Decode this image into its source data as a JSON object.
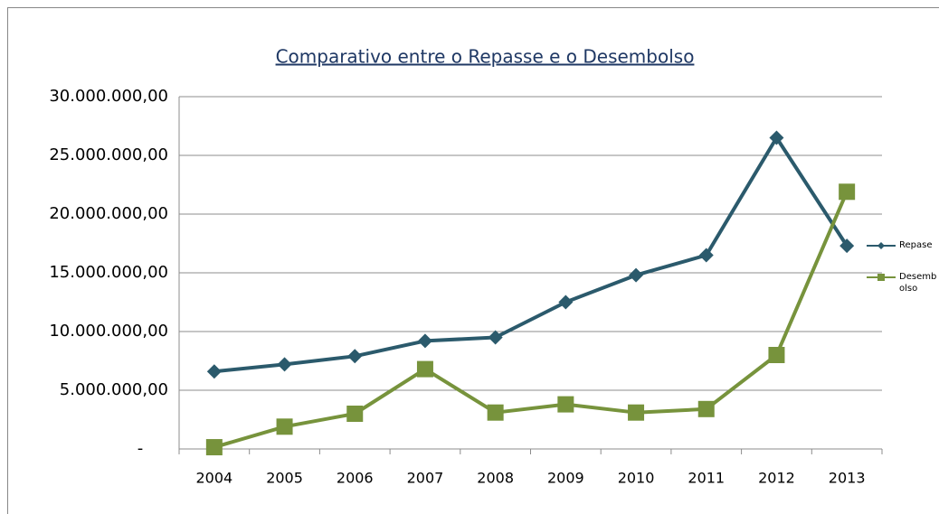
{
  "chart_data": {
    "type": "line",
    "title": "Comparativo entre o Repasse e o Desembolso",
    "categories": [
      "2004",
      "2005",
      "2006",
      "2007",
      "2008",
      "2009",
      "2010",
      "2011",
      "2012",
      "2013"
    ],
    "series": [
      {
        "name": "Repase",
        "color": "#2b5a6c",
        "marker": "diamond",
        "values": [
          6600000,
          7200000,
          7900000,
          9200000,
          9500000,
          12500000,
          14800000,
          16500000,
          26500000,
          17300000
        ]
      },
      {
        "name": "Desembolso",
        "color": "#77933c",
        "marker": "square",
        "values": [
          150000,
          1900000,
          3000000,
          6800000,
          3100000,
          3800000,
          3100000,
          3400000,
          8000000,
          21900000
        ]
      }
    ],
    "ylim": [
      0,
      30000000
    ],
    "yticks": [
      {
        "value": 0,
        "label": "-"
      },
      {
        "value": 5000000,
        "label": "5.000.000,00"
      },
      {
        "value": 10000000,
        "label": "10.000.000,00"
      },
      {
        "value": 15000000,
        "label": "15.000.000,00"
      },
      {
        "value": 20000000,
        "label": "20.000.000,00"
      },
      {
        "value": 25000000,
        "label": "25.000.000,00"
      },
      {
        "value": 30000000,
        "label": "30.000.000,00"
      }
    ],
    "grid": true
  }
}
